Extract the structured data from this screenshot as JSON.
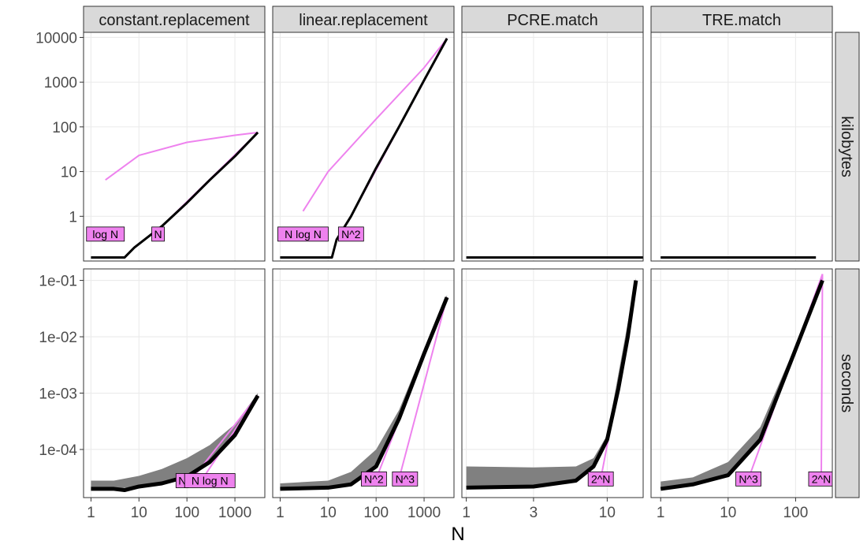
{
  "chart_data": {
    "type": "line",
    "x_axis_title": "N",
    "facet_columns": [
      "constant.replacement",
      "linear.replacement",
      "PCRE.match",
      "TRE.match"
    ],
    "facet_rows": [
      "kilobytes",
      "seconds"
    ],
    "colors": {
      "measured": "#000000",
      "quartile_band": "#808080",
      "reference": "#ee82ee",
      "strip_fill": "#d9d9d9"
    },
    "x_ticks": {
      "constant.replacement": [
        1,
        10,
        100,
        1000
      ],
      "linear.replacement": [
        1,
        10,
        100,
        1000
      ],
      "PCRE.match": [
        1,
        3,
        10
      ],
      "TRE.match": [
        1,
        10,
        100
      ]
    },
    "y_ticks": {
      "kilobytes": [
        "1",
        "10",
        "100",
        "1000",
        "10000"
      ],
      "seconds": [
        "1e-04",
        "1e-03",
        "1e-02",
        "1e-01"
      ]
    },
    "y_scale": "log10",
    "x_scale": "log10",
    "panels": [
      {
        "col": "constant.replacement",
        "row": "kilobytes",
        "measured": [
          [
            1,
            0.12
          ],
          [
            5,
            0.12
          ],
          [
            8,
            0.2
          ],
          [
            30,
            0.6
          ],
          [
            100,
            2
          ],
          [
            300,
            6.5
          ],
          [
            1000,
            22
          ],
          [
            3000,
            75
          ]
        ],
        "band": [],
        "references": [
          {
            "label": "log N",
            "points": [
              [
                2,
                6.5
              ],
              [
                10,
                23
              ],
              [
                100,
                45
              ],
              [
                1000,
                65
              ],
              [
                3000,
                75
              ]
            ],
            "label_at": [
              2,
              0.4
            ]
          },
          {
            "label": "N",
            "points": [
              [
                30,
                0.6
              ],
              [
                3000,
                75
              ]
            ],
            "label_at": [
              25,
              0.4
            ]
          }
        ]
      },
      {
        "col": "linear.replacement",
        "row": "kilobytes",
        "measured": [
          [
            1,
            0.12
          ],
          [
            12,
            0.12
          ],
          [
            15,
            0.3
          ],
          [
            30,
            1
          ],
          [
            100,
            12
          ],
          [
            300,
            100
          ],
          [
            1000,
            1100
          ],
          [
            3000,
            9500
          ]
        ],
        "band": [],
        "references": [
          {
            "label": "N log N",
            "points": [
              [
                3,
                1.3
              ],
              [
                10,
                10
              ],
              [
                100,
                150
              ],
              [
                1000,
                2100
              ],
              [
                3000,
                9500
              ]
            ],
            "label_at": [
              3,
              0.4
            ]
          },
          {
            "label": "N^2",
            "points": [
              [
                30,
                1
              ],
              [
                3000,
                9500
              ]
            ],
            "label_at": [
              30,
              0.4
            ]
          }
        ]
      },
      {
        "col": "PCRE.match",
        "row": "kilobytes",
        "measured": [
          [
            1,
            0.12
          ],
          [
            20,
            0.12
          ]
        ],
        "band": [],
        "references": []
      },
      {
        "col": "TRE.match",
        "row": "kilobytes",
        "measured": [
          [
            1,
            0.12
          ],
          [
            200,
            0.12
          ]
        ],
        "band": [],
        "references": []
      },
      {
        "col": "constant.replacement",
        "row": "seconds",
        "measured": [
          [
            1,
            2e-05
          ],
          [
            3,
            2e-05
          ],
          [
            5,
            1.9e-05
          ],
          [
            10,
            2.2e-05
          ],
          [
            30,
            2.5e-05
          ],
          [
            100,
            3.3e-05
          ],
          [
            300,
            6e-05
          ],
          [
            1000,
            0.00018
          ],
          [
            3000,
            0.0009
          ]
        ],
        "band": [
          [
            1,
            2e-05,
            2.8e-05
          ],
          [
            3,
            2e-05,
            2.8e-05
          ],
          [
            10,
            2.2e-05,
            3.4e-05
          ],
          [
            30,
            2.5e-05,
            4.5e-05
          ],
          [
            100,
            3.4e-05,
            7e-05
          ],
          [
            300,
            6e-05,
            0.00012
          ],
          [
            1000,
            0.00018,
            0.00028
          ],
          [
            3000,
            0.0009,
            0.001
          ]
        ],
        "references": [
          {
            "label": "N",
            "points": [
              [
                120,
                2.8e-05
              ],
              [
                3000,
                0.0009
              ]
            ],
            "label_at": [
              80,
              2.8e-05
            ]
          },
          {
            "label": "N log N",
            "points": [
              [
                200,
                2.8e-05
              ],
              [
                3000,
                0.0009
              ]
            ],
            "label_at": [
              300,
              2.8e-05
            ]
          }
        ]
      },
      {
        "col": "linear.replacement",
        "row": "seconds",
        "measured": [
          [
            1,
            2e-05
          ],
          [
            10,
            2.1e-05
          ],
          [
            30,
            2.4e-05
          ],
          [
            100,
            5e-05
          ],
          [
            300,
            0.00035
          ],
          [
            1000,
            0.005
          ],
          [
            3000,
            0.05
          ]
        ],
        "band": [
          [
            1,
            2e-05,
            2.5e-05
          ],
          [
            10,
            2.1e-05,
            2.8e-05
          ],
          [
            30,
            2.4e-05,
            4e-05
          ],
          [
            100,
            5e-05,
            0.0001
          ],
          [
            300,
            0.00036,
            0.0005
          ],
          [
            1000,
            0.005,
            0.006
          ],
          [
            3000,
            0.05,
            0.055
          ]
        ],
        "references": [
          {
            "label": "N^2",
            "points": [
              [
                100,
                3e-05
              ],
              [
                3000,
                0.05
              ]
            ],
            "label_at": [
              90,
              3e-05
            ]
          },
          {
            "label": "N^3",
            "points": [
              [
                300,
                3e-05
              ],
              [
                3000,
                0.05
              ]
            ],
            "label_at": [
              400,
              3e-05
            ]
          }
        ]
      },
      {
        "col": "PCRE.match",
        "row": "seconds",
        "measured": [
          [
            1,
            2.1e-05
          ],
          [
            3,
            2.2e-05
          ],
          [
            6,
            2.8e-05
          ],
          [
            8,
            5e-05
          ],
          [
            10,
            0.00015
          ],
          [
            12,
            0.0012
          ],
          [
            14,
            0.01
          ],
          [
            16,
            0.1
          ]
        ],
        "band": [
          [
            1,
            2.1e-05,
            5e-05
          ],
          [
            3,
            2.2e-05,
            4.8e-05
          ],
          [
            6,
            2.8e-05,
            5e-05
          ],
          [
            8,
            5e-05,
            7e-05
          ],
          [
            10,
            0.00015,
            0.00018
          ],
          [
            16,
            0.1,
            0.11
          ]
        ],
        "references": [
          {
            "label": "2^N",
            "points": [
              [
                9,
                3e-05
              ],
              [
                10,
                0.00012
              ],
              [
                12,
                0.0011
              ],
              [
                14,
                0.01
              ],
              [
                16,
                0.1
              ]
            ],
            "label_at": [
              9,
              3e-05
            ]
          }
        ]
      },
      {
        "col": "TRE.match",
        "row": "seconds",
        "measured": [
          [
            1,
            2e-05
          ],
          [
            3,
            2.4e-05
          ],
          [
            10,
            3.5e-05
          ],
          [
            30,
            0.00015
          ],
          [
            100,
            0.006
          ],
          [
            250,
            0.1
          ]
        ],
        "band": [
          [
            1,
            2e-05,
            2.7e-05
          ],
          [
            3,
            2.4e-05,
            3.2e-05
          ],
          [
            10,
            3.5e-05,
            6e-05
          ],
          [
            30,
            0.00015,
            0.00025
          ],
          [
            100,
            0.006,
            0.007
          ],
          [
            250,
            0.1,
            0.12
          ]
        ],
        "references": [
          {
            "label": "N^3",
            "points": [
              [
                20,
                3e-05
              ],
              [
                250,
                0.13
              ]
            ],
            "label_at": [
              20,
              3e-05
            ]
          },
          {
            "label": "2^N",
            "points": [
              [
                240,
                3e-05
              ],
              [
                250,
                0.13
              ]
            ],
            "label_at": [
              240,
              3e-05
            ]
          }
        ]
      }
    ]
  }
}
